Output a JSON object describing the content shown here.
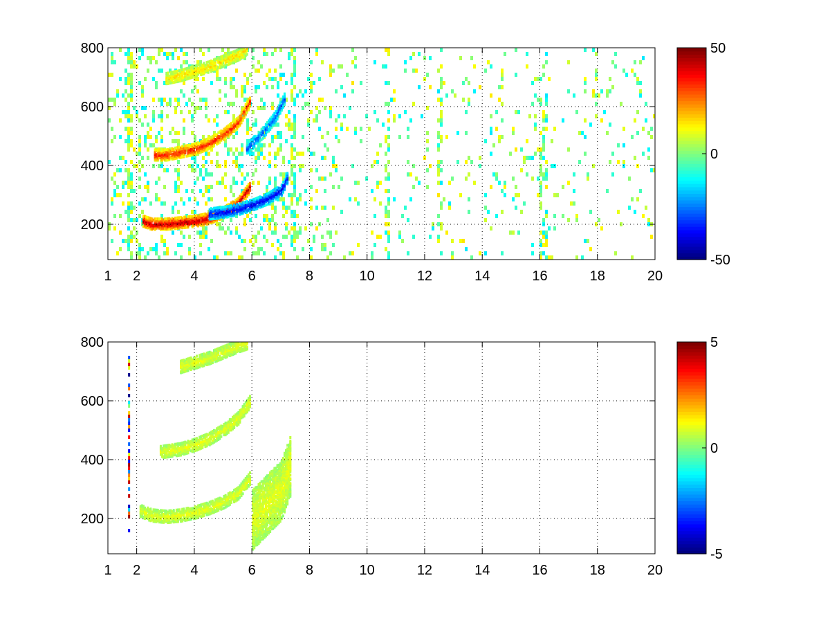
{
  "chart_data": [
    {
      "type": "heatmap",
      "title": "",
      "xlabel": "",
      "ylabel": "",
      "xlim": [
        1,
        20
      ],
      "ylim": [
        80,
        800
      ],
      "xticks": [
        1,
        2,
        4,
        6,
        8,
        10,
        12,
        14,
        16,
        18,
        20
      ],
      "xtick_labels": [
        "1",
        "2",
        "4",
        "6",
        "8",
        "10",
        "12",
        "14",
        "16",
        "18",
        "20"
      ],
      "yticks": [
        200,
        400,
        600,
        800
      ],
      "ytick_labels": [
        "200",
        "400",
        "600",
        "800"
      ],
      "grid": true,
      "colormap": "jet",
      "colorbar": {
        "min": -50,
        "max": 50,
        "ticks": [
          50,
          0,
          -50
        ],
        "tick_labels": [
          "50",
          "0",
          "-50"
        ]
      },
      "features": [
        {
          "name": "upper-arc",
          "x": [
            3.0,
            3.5,
            4.0,
            4.5,
            5.0,
            5.5,
            5.8
          ],
          "y": [
            700,
            710,
            725,
            740,
            760,
            780,
            800
          ],
          "value": 15
        },
        {
          "name": "middle-arc",
          "x": [
            2.6,
            3.0,
            3.5,
            4.0,
            4.5,
            5.0,
            5.5,
            5.9
          ],
          "y": [
            440,
            440,
            450,
            460,
            480,
            510,
            550,
            620
          ],
          "value": 35
        },
        {
          "name": "middle-arc-negative",
          "x": [
            5.8,
            6.0,
            6.4,
            6.8,
            7.1
          ],
          "y": [
            460,
            480,
            520,
            570,
            630
          ],
          "value": -30
        },
        {
          "name": "lower-arc",
          "x": [
            2.2,
            2.5,
            3.0,
            3.5,
            4.0,
            4.5,
            5.0,
            5.5,
            5.9
          ],
          "y": [
            215,
            205,
            205,
            210,
            215,
            225,
            245,
            275,
            330
          ],
          "value": 45
        },
        {
          "name": "lower-arc-negative",
          "x": [
            4.5,
            5.0,
            5.5,
            6.0,
            6.5,
            7.0,
            7.2
          ],
          "y": [
            240,
            245,
            255,
            270,
            290,
            320,
            360
          ],
          "value": -40
        }
      ]
    },
    {
      "type": "heatmap",
      "title": "",
      "xlabel": "",
      "ylabel": "",
      "xlim": [
        1,
        20
      ],
      "ylim": [
        80,
        800
      ],
      "xticks": [
        1,
        2,
        4,
        6,
        8,
        10,
        12,
        14,
        16,
        18,
        20
      ],
      "xtick_labels": [
        "1",
        "2",
        "4",
        "6",
        "8",
        "10",
        "12",
        "14",
        "16",
        "18",
        "20"
      ],
      "yticks": [
        200,
        400,
        600,
        800
      ],
      "ytick_labels": [
        "200",
        "400",
        "600",
        "800"
      ],
      "grid": true,
      "colormap": "jet",
      "colorbar": {
        "min": -5,
        "max": 5,
        "ticks": [
          5,
          0,
          -5
        ],
        "tick_labels": [
          "5",
          "0",
          "-5"
        ]
      },
      "features": [
        {
          "name": "upper-arc",
          "x": [
            3.5,
            4.0,
            4.5,
            5.0,
            5.5,
            5.8
          ],
          "y": [
            720,
            735,
            750,
            770,
            790,
            800
          ],
          "value": 1
        },
        {
          "name": "middle-arc",
          "x": [
            2.8,
            3.5,
            4.0,
            4.5,
            5.0,
            5.5,
            5.9
          ],
          "y": [
            430,
            440,
            455,
            475,
            505,
            545,
            600
          ],
          "value": 1
        },
        {
          "name": "lower-arc",
          "x": [
            2.1,
            2.5,
            3.0,
            3.5,
            4.0,
            4.5,
            5.0,
            5.5,
            5.9
          ],
          "y": [
            230,
            215,
            210,
            215,
            225,
            240,
            260,
            290,
            340
          ],
          "value": 1
        },
        {
          "name": "band-6-7",
          "x": [
            6.0,
            6.5,
            7.0,
            7.3
          ],
          "y": [
            200,
            250,
            300,
            380
          ],
          "value": 1
        }
      ]
    }
  ]
}
